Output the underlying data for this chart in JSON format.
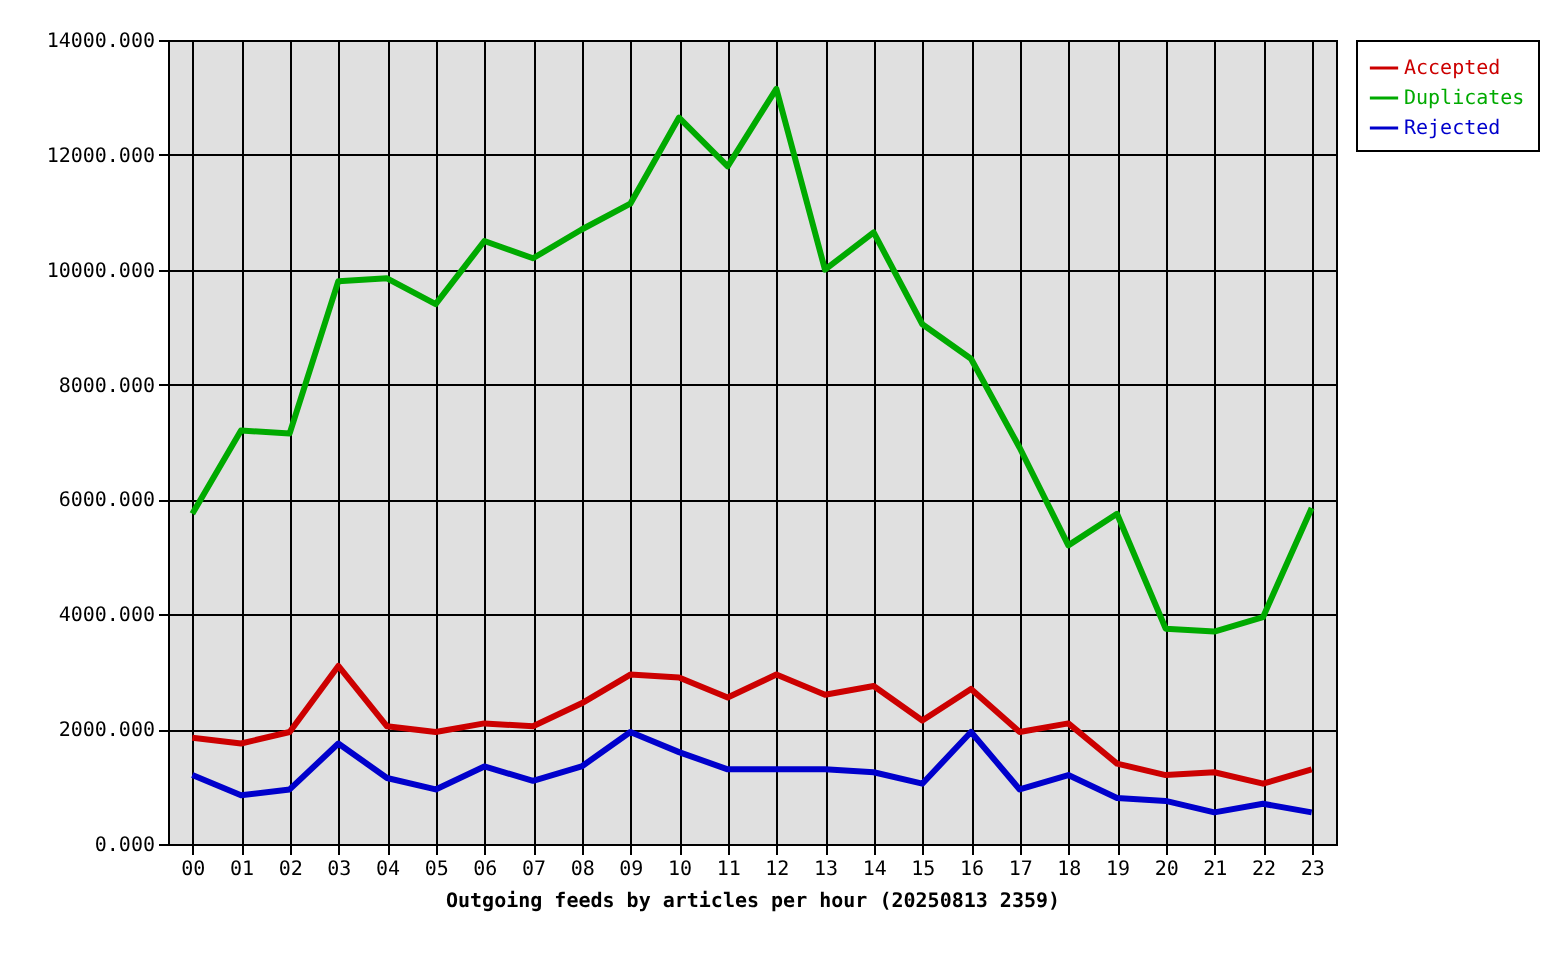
{
  "chart_data": {
    "type": "line",
    "xlabel": "Outgoing feeds by articles per hour (20250813 2359)",
    "categories": [
      "00",
      "01",
      "02",
      "03",
      "04",
      "05",
      "06",
      "07",
      "08",
      "09",
      "10",
      "11",
      "12",
      "13",
      "14",
      "15",
      "16",
      "17",
      "18",
      "19",
      "20",
      "21",
      "22",
      "23"
    ],
    "series": [
      {
        "name": "Accepted",
        "color": "#cc0000",
        "values": [
          1850,
          1750,
          1950,
          3100,
          2050,
          1950,
          2100,
          2050,
          2450,
          2950,
          2900,
          2550,
          2950,
          2600,
          2750,
          2150,
          2700,
          1950,
          2100,
          1400,
          1200,
          1250,
          1050,
          1300
        ]
      },
      {
        "name": "Duplicates",
        "color": "#00aa00",
        "values": [
          5750,
          7200,
          7150,
          9800,
          9850,
          9400,
          10500,
          10200,
          10700,
          11150,
          12650,
          11800,
          13150,
          10000,
          10650,
          9050,
          8450,
          6900,
          5200,
          5750,
          3750,
          3700,
          3950,
          5850
        ]
      },
      {
        "name": "Rejected",
        "color": "#0000cc",
        "values": [
          1200,
          850,
          950,
          1750,
          1150,
          950,
          1350,
          1100,
          1350,
          1950,
          1600,
          1300,
          1300,
          1300,
          1250,
          1050,
          1950,
          950,
          1200,
          800,
          750,
          550,
          700,
          550
        ]
      }
    ],
    "ylim": [
      0,
      14000
    ],
    "yticks": [
      {
        "value": 0,
        "label": "0.000"
      },
      {
        "value": 2000,
        "label": "2000.000"
      },
      {
        "value": 4000,
        "label": "4000.000"
      },
      {
        "value": 6000,
        "label": "6000.000"
      },
      {
        "value": 8000,
        "label": "8000.000"
      },
      {
        "value": 10000,
        "label": "10000.000"
      },
      {
        "value": 12000,
        "label": "12000.000"
      },
      {
        "value": 14000,
        "label": "14000.000"
      }
    ],
    "grid": true,
    "legend": "top right",
    "line_style": "solid"
  }
}
